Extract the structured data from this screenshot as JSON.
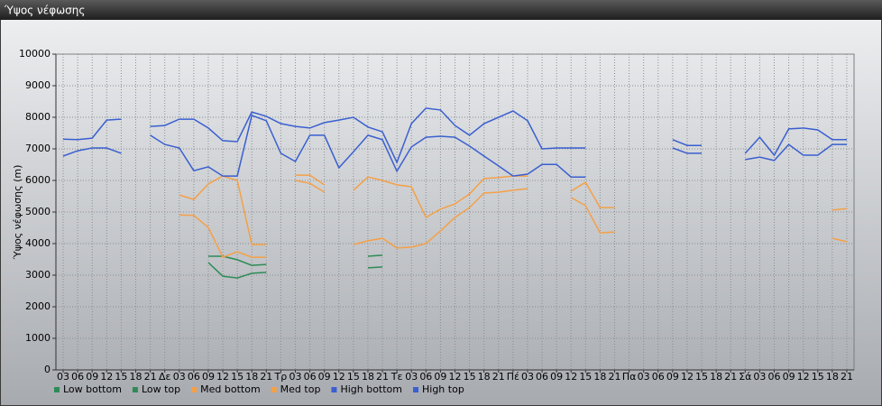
{
  "window_title": "Ύψος νέφωσης",
  "chart_data": {
    "type": "line",
    "ylabel": "Ύψος νέφωσης (m)",
    "ylim": [
      0,
      10000
    ],
    "yticks": [
      0,
      1000,
      2000,
      3000,
      4000,
      5000,
      6000,
      7000,
      8000,
      9000,
      10000
    ],
    "grid": true,
    "legend": "bottom",
    "categories": [
      "03",
      "06",
      "09",
      "12",
      "15",
      "18",
      "21",
      "Δε",
      "03",
      "06",
      "09",
      "12",
      "15",
      "18",
      "21",
      "Τρ",
      "03",
      "06",
      "09",
      "12",
      "15",
      "18",
      "21",
      "Τε",
      "03",
      "06",
      "09",
      "12",
      "15",
      "18",
      "21",
      "Πέ",
      "03",
      "06",
      "09",
      "12",
      "15",
      "18",
      "21",
      "Πα",
      "03",
      "06",
      "09",
      "12",
      "15",
      "18",
      "21",
      "Σά",
      "03",
      "06",
      "09",
      "12",
      "15",
      "18",
      "21"
    ],
    "series": [
      {
        "name": "Low bottom",
        "color": "#2e8b57",
        "values": [
          null,
          null,
          null,
          null,
          null,
          null,
          null,
          null,
          null,
          null,
          3400,
          2970,
          2910,
          3060,
          3090,
          null,
          null,
          null,
          null,
          null,
          null,
          3230,
          3260,
          null,
          null,
          null,
          null,
          null,
          null,
          null,
          null,
          null,
          null,
          null,
          null,
          null,
          null,
          null,
          null,
          null,
          null,
          null,
          null,
          null,
          null,
          null,
          null,
          null,
          null,
          null,
          null,
          null,
          null,
          null,
          null
        ]
      },
      {
        "name": "Low top",
        "color": "#2e8b57",
        "values": [
          null,
          null,
          null,
          null,
          null,
          null,
          null,
          null,
          null,
          null,
          3600,
          3600,
          3490,
          3310,
          3340,
          null,
          null,
          null,
          null,
          null,
          null,
          3600,
          3630,
          null,
          null,
          null,
          null,
          null,
          null,
          null,
          null,
          null,
          null,
          null,
          null,
          null,
          null,
          null,
          null,
          null,
          null,
          null,
          null,
          null,
          null,
          null,
          null,
          null,
          null,
          null,
          null,
          null,
          null,
          null,
          null
        ]
      },
      {
        "name": "Med bottom",
        "color": "#f4a048",
        "values": [
          null,
          null,
          null,
          null,
          null,
          null,
          null,
          null,
          4910,
          4890,
          4510,
          3570,
          3740,
          3570,
          3570,
          null,
          6000,
          5910,
          5630,
          null,
          3970,
          4090,
          4170,
          3860,
          3890,
          4000,
          4400,
          4830,
          5140,
          5600,
          5630,
          5690,
          5740,
          null,
          null,
          5460,
          5200,
          4340,
          4370,
          null,
          null,
          null,
          null,
          null,
          null,
          null,
          null,
          null,
          null,
          null,
          null,
          null,
          null,
          4170,
          4060
        ]
      },
      {
        "name": "Med top",
        "color": "#f4a048",
        "values": [
          null,
          null,
          null,
          null,
          null,
          null,
          null,
          null,
          5540,
          5400,
          5890,
          6140,
          6000,
          3970,
          3970,
          null,
          6170,
          6170,
          5860,
          null,
          5690,
          6110,
          6000,
          5860,
          5800,
          4830,
          5090,
          5260,
          5570,
          6060,
          6090,
          6140,
          6140,
          null,
          null,
          5660,
          5940,
          5140,
          5140,
          null,
          null,
          null,
          null,
          null,
          null,
          null,
          null,
          null,
          null,
          null,
          null,
          null,
          null,
          5060,
          5110
        ]
      },
      {
        "name": "High bottom",
        "color": "#3a5fd0",
        "values": [
          6770,
          6940,
          7030,
          7030,
          6860,
          null,
          7430,
          7140,
          7030,
          6310,
          6430,
          6140,
          6140,
          8060,
          7890,
          6860,
          6600,
          7430,
          7430,
          6400,
          6910,
          7430,
          7290,
          6290,
          7060,
          7370,
          7400,
          7370,
          7090,
          6770,
          6460,
          6140,
          6200,
          6510,
          6510,
          6110,
          6110,
          null,
          null,
          null,
          null,
          null,
          7030,
          6860,
          6860,
          null,
          null,
          6660,
          6740,
          6630,
          7140,
          6800,
          6800,
          7140,
          7140
        ]
      },
      {
        "name": "High top",
        "color": "#3a5fd0",
        "values": [
          7310,
          7290,
          7340,
          7910,
          7940,
          null,
          7710,
          7740,
          7940,
          7940,
          7660,
          7260,
          7230,
          8170,
          8030,
          7800,
          7710,
          7660,
          7830,
          7910,
          8000,
          7690,
          7540,
          6570,
          7800,
          8290,
          8230,
          7740,
          7430,
          7800,
          8000,
          8200,
          7890,
          7000,
          7030,
          7030,
          7030,
          null,
          null,
          null,
          null,
          null,
          7290,
          7110,
          7110,
          null,
          null,
          6860,
          7370,
          6800,
          7630,
          7660,
          7600,
          7290,
          7290
        ]
      }
    ]
  }
}
